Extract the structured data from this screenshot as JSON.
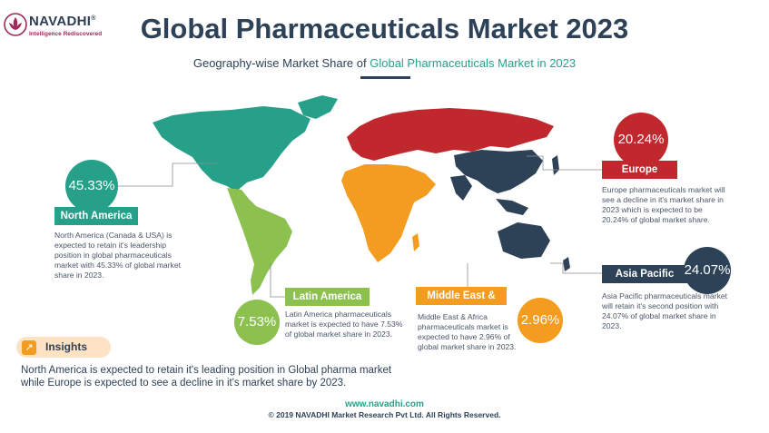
{
  "brand": {
    "name": "NAVADHI",
    "tagline": "Intelligence Rediscovered",
    "registered": "®"
  },
  "header": {
    "title": "Global Pharmaceuticals Market 2023",
    "subtitle_prefix": "Geography-wise Market Share of ",
    "subtitle_highlight": "Global Pharmaceuticals Market in 2023"
  },
  "colors": {
    "north_america": "#27a08a",
    "europe": "#c0282e",
    "asia_pacific": "#2d4157",
    "latin_america": "#8cc04f",
    "middle_east_africa": "#f39c1f",
    "title": "#2d4157"
  },
  "chart_data": {
    "type": "pie",
    "title": "Global Pharmaceuticals Market 2023",
    "subtitle": "Geography-wise Market Share of Global Pharmaceuticals Market in 2023",
    "categories": [
      "North America",
      "Europe",
      "Asia Pacific",
      "Latin America",
      "Middle East & Africa"
    ],
    "values": [
      45.33,
      20.24,
      24.07,
      7.53,
      2.96
    ],
    "value_labels": [
      "45.33%",
      "20.24%",
      "24.07%",
      "7.53%",
      "2.96%"
    ]
  },
  "regions": {
    "north_america": {
      "label": "North America",
      "value": "45.33%",
      "desc": "North America (Canada & USA) is expected to retain it's leadership position in global pharmaceuticals market with 45.33% of global market share in 2023."
    },
    "europe": {
      "label": "Europe",
      "value": "20.24%",
      "desc": "Europe pharmaceuticals market will see a decline in it's market share in 2023 which is expected to be 20.24% of global market share."
    },
    "asia_pacific": {
      "label": "Asia Pacific",
      "value": "24.07%",
      "desc": "Asia Pacific pharmaceuticals market will retain it's second position with 24.07% of global market share in 2023."
    },
    "latin_america": {
      "label": "Latin America",
      "value": "7.53%",
      "desc": "Latin America pharmaceuticals market is expected to have 7.53% of global market share in 2023."
    },
    "middle_east_africa": {
      "label": "Middle East & Africa",
      "value": "2.96%",
      "desc": "Middle East & Africa pharmaceuticals market is expected to have 2.96% of global market share in 2023."
    }
  },
  "insights": {
    "label": "Insights",
    "icon": "trend-arrow-icon",
    "text": "North America is expected to retain it's leading position in Global pharma market while Europe is expected to see a decline in it's market share by 2023."
  },
  "footer": {
    "website": "www.navadhi.com",
    "copyright": "© 2019 NAVADHI Market Research Pvt Ltd. All Rights Reserved."
  }
}
